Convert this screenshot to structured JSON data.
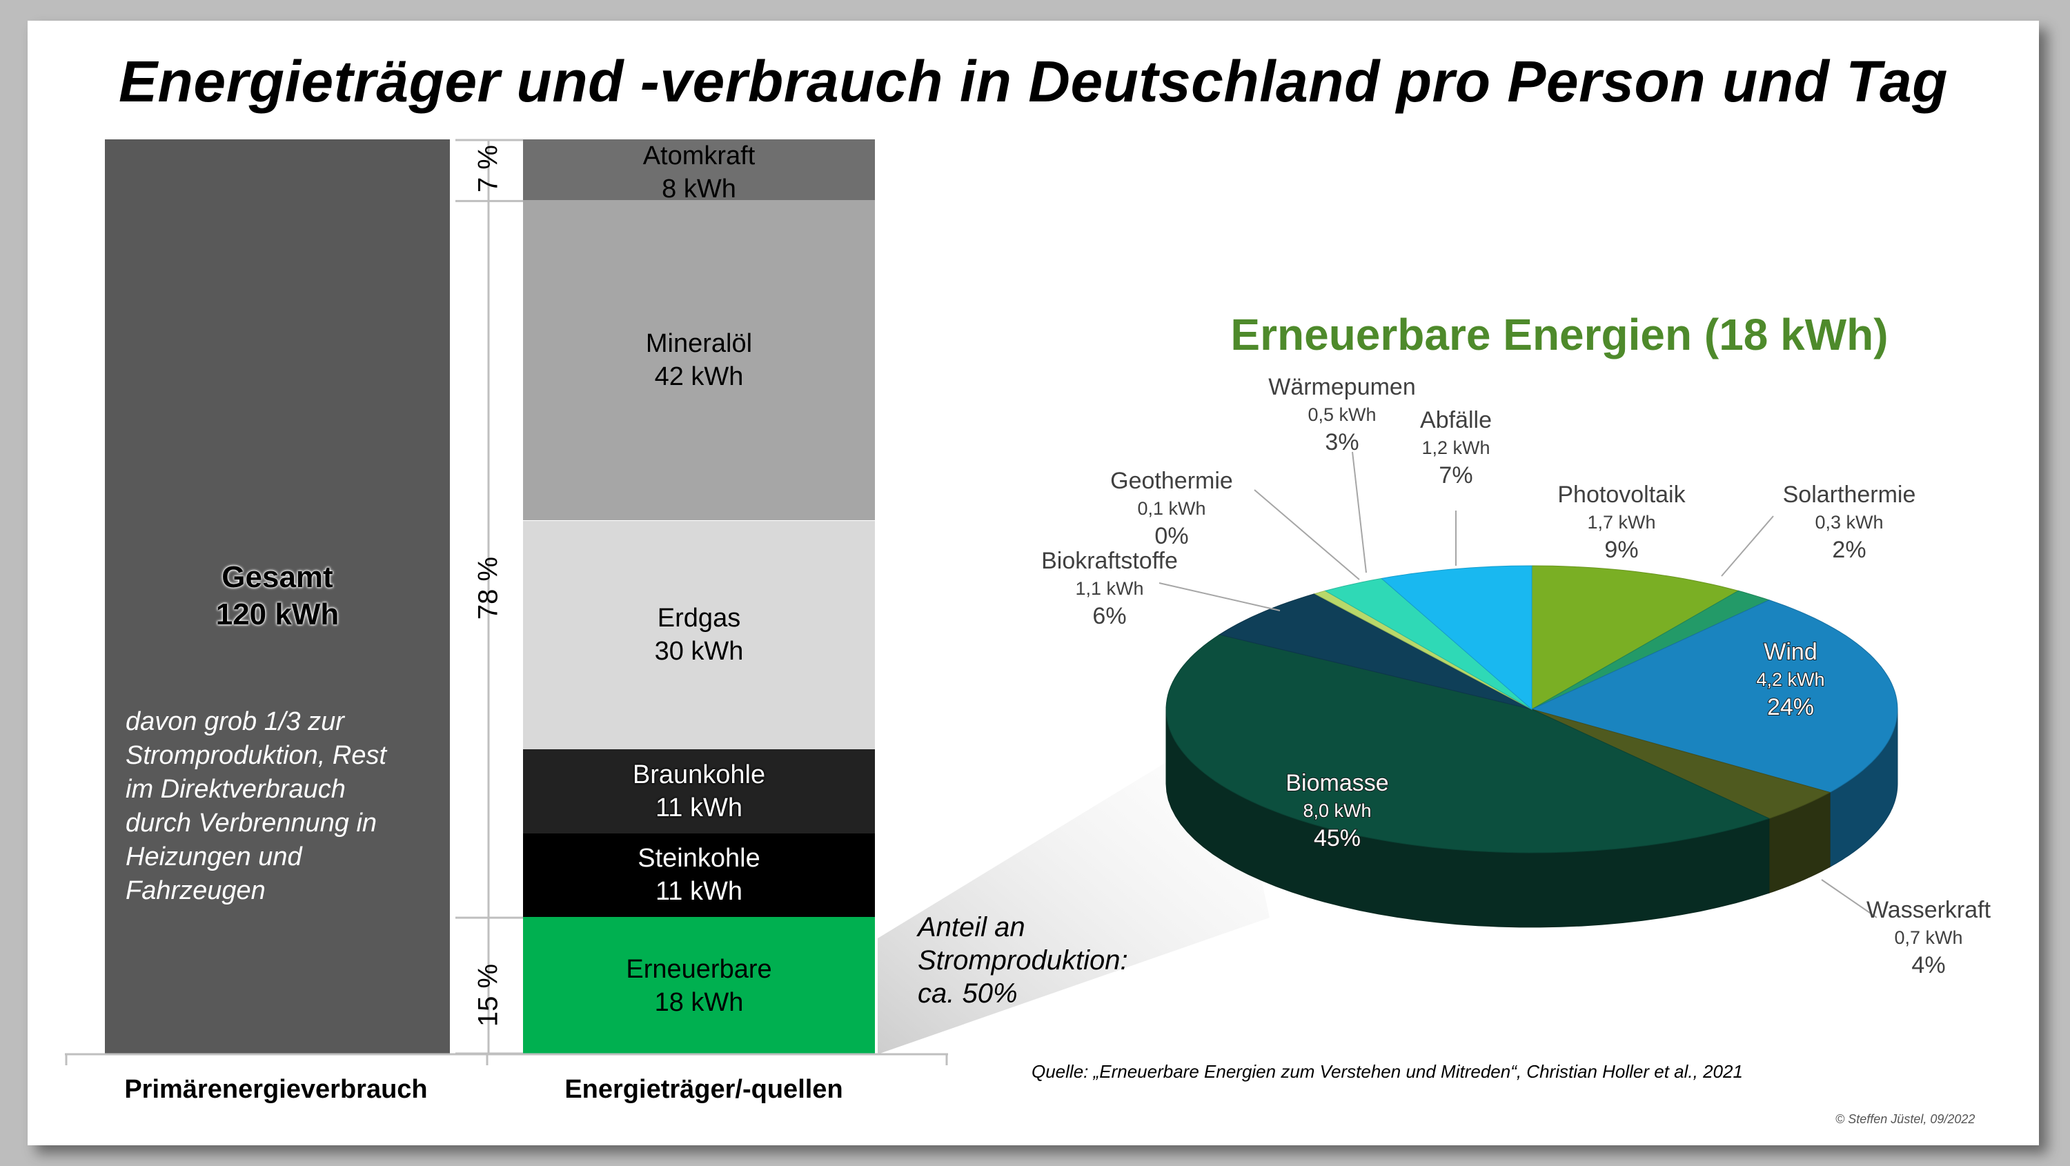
{
  "title": "Energieträger und -verbrauch in Deutschland pro Person und Tag",
  "left_column": {
    "total_title": "Gesamt",
    "total_value": "120 kWh",
    "note": "davon grob 1/3 zur Stromproduktion, Rest im Direktverbrauch durch Verbrennung in Heizungen und Fahrzeugen",
    "axis_label": "Primärenergieverbrauch"
  },
  "right_column": {
    "axis_label": "Energieträger/-quellen"
  },
  "percent_brackets": [
    {
      "label": "7 %"
    },
    {
      "label": "78 %"
    },
    {
      "label": "15 %"
    }
  ],
  "renewables_note": "Anteil an Stromproduktion: ca. 50%",
  "pie_title": "Erneuerbare Energien (18 kWh)",
  "source": "Quelle: „Erneuerbare Energien zum Verstehen und Mitreden“, Christian Holler et al., 2021",
  "copyright": "© Steffen Jüstel, 09/2022",
  "colors": {
    "atom": "#6f6f6f",
    "oil": "#a6a6a6",
    "gas": "#d9d9d9",
    "lignite": "#222222",
    "hardcoal": "#000000",
    "renewables": "#00b050",
    "total": "#595959",
    "pie_title": "#4e8a2b"
  },
  "chart_data": [
    {
      "type": "bar",
      "title": "Primärenergieverbrauch",
      "categories": [
        "Gesamt"
      ],
      "values": [
        120
      ],
      "unit": "kWh"
    },
    {
      "type": "bar",
      "title": "Energieträger/-quellen",
      "stacked": true,
      "unit": "kWh",
      "series": [
        {
          "name": "Atomkraft",
          "value": 8,
          "value_label": "8 kWh"
        },
        {
          "name": "Mineralöl",
          "value": 42,
          "value_label": "42 kWh"
        },
        {
          "name": "Erdgas",
          "value": 30,
          "value_label": "30 kWh"
        },
        {
          "name": "Braunkohle",
          "value": 11,
          "value_label": "11 kWh"
        },
        {
          "name": "Steinkohle",
          "value": 11,
          "value_label": "11 kWh"
        },
        {
          "name": "Erneuerbare",
          "value": 18,
          "value_label": "18 kWh"
        }
      ]
    },
    {
      "type": "pie",
      "title": "Erneuerbare Energien (18 kWh)",
      "slices": [
        {
          "name": "Photovoltaik",
          "value": 1.7,
          "value_label": "1,7 kWh",
          "percent": "9%",
          "color": "#7aaf24"
        },
        {
          "name": "Solarthermie",
          "value": 0.3,
          "value_label": "0,3 kWh",
          "percent": "2%",
          "color": "#239a68"
        },
        {
          "name": "Wind",
          "value": 4.2,
          "value_label": "4,2 kWh",
          "percent": "24%",
          "color": "#1a84bf"
        },
        {
          "name": "Wasserkraft",
          "value": 0.7,
          "value_label": "0,7 kWh",
          "percent": "4%",
          "color": "#4f5a1f"
        },
        {
          "name": "Biomasse",
          "value": 8.0,
          "value_label": "8,0 kWh",
          "percent": "45%",
          "color": "#0c4f3e"
        },
        {
          "name": "Biokraftstoffe",
          "value": 1.1,
          "value_label": "1,1 kWh",
          "percent": "6%",
          "color": "#0f3f58"
        },
        {
          "name": "Geothermie",
          "value": 0.1,
          "value_label": "0,1 kWh",
          "percent": "0%",
          "color": "#b9d86a"
        },
        {
          "name": "Wärmepumen",
          "value": 0.5,
          "value_label": "0,5 kWh",
          "percent": "3%",
          "color": "#2fd9b6"
        },
        {
          "name": "Abfälle",
          "value": 1.2,
          "value_label": "1,2 kWh",
          "percent": "7%",
          "color": "#19b8f0"
        }
      ]
    }
  ]
}
